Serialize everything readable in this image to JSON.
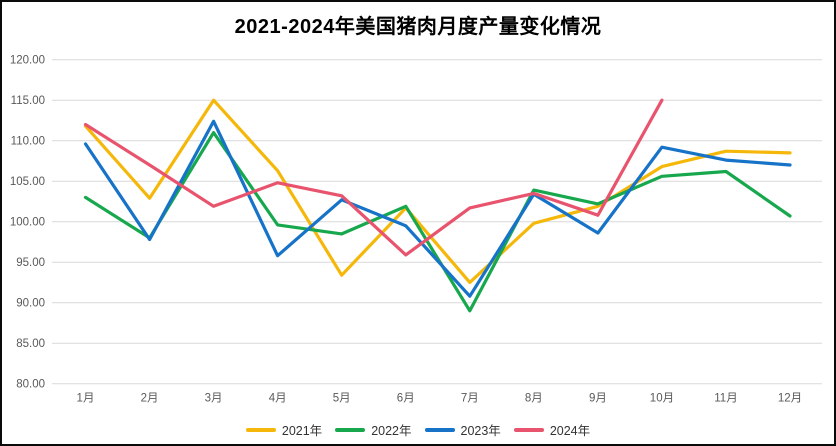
{
  "chart_data": {
    "type": "line",
    "title": "2021-2024年美国猪肉月度产量变化情况",
    "categories": [
      "1月",
      "2月",
      "3月",
      "4月",
      "5月",
      "6月",
      "7月",
      "8月",
      "9月",
      "10月",
      "11月",
      "12月"
    ],
    "series": [
      {
        "name": "2021年",
        "color": "#F5B80A",
        "values": [
          111.8,
          102.9,
          115.0,
          106.3,
          93.4,
          101.7,
          92.5,
          99.8,
          101.9,
          106.8,
          108.7,
          108.5
        ]
      },
      {
        "name": "2022年",
        "color": "#17A84E",
        "values": [
          103.0,
          98.0,
          111.0,
          99.6,
          98.5,
          101.9,
          89.0,
          103.9,
          102.2,
          105.6,
          106.2,
          100.7
        ]
      },
      {
        "name": "2023年",
        "color": "#1673C8",
        "values": [
          109.6,
          97.8,
          112.4,
          95.8,
          102.7,
          99.5,
          90.8,
          103.4,
          98.6,
          109.2,
          107.6,
          107.0
        ]
      },
      {
        "name": "2024年",
        "color": "#E8546D",
        "values": [
          112.0,
          107.0,
          101.9,
          104.8,
          103.2,
          95.9,
          101.7,
          103.5,
          100.8,
          115.0,
          null,
          null
        ]
      }
    ],
    "y_axis": {
      "min": 80,
      "max": 120,
      "step": 5,
      "tick_labels": [
        "120.00",
        "115.00",
        "110.00",
        "105.00",
        "100.00",
        "95.00",
        "90.00",
        "85.00",
        "80.00"
      ]
    },
    "grid": "horizontal-only",
    "grid_color": "#D9D9D9",
    "axis_text_color": "#595959",
    "legend_position": "bottom"
  }
}
